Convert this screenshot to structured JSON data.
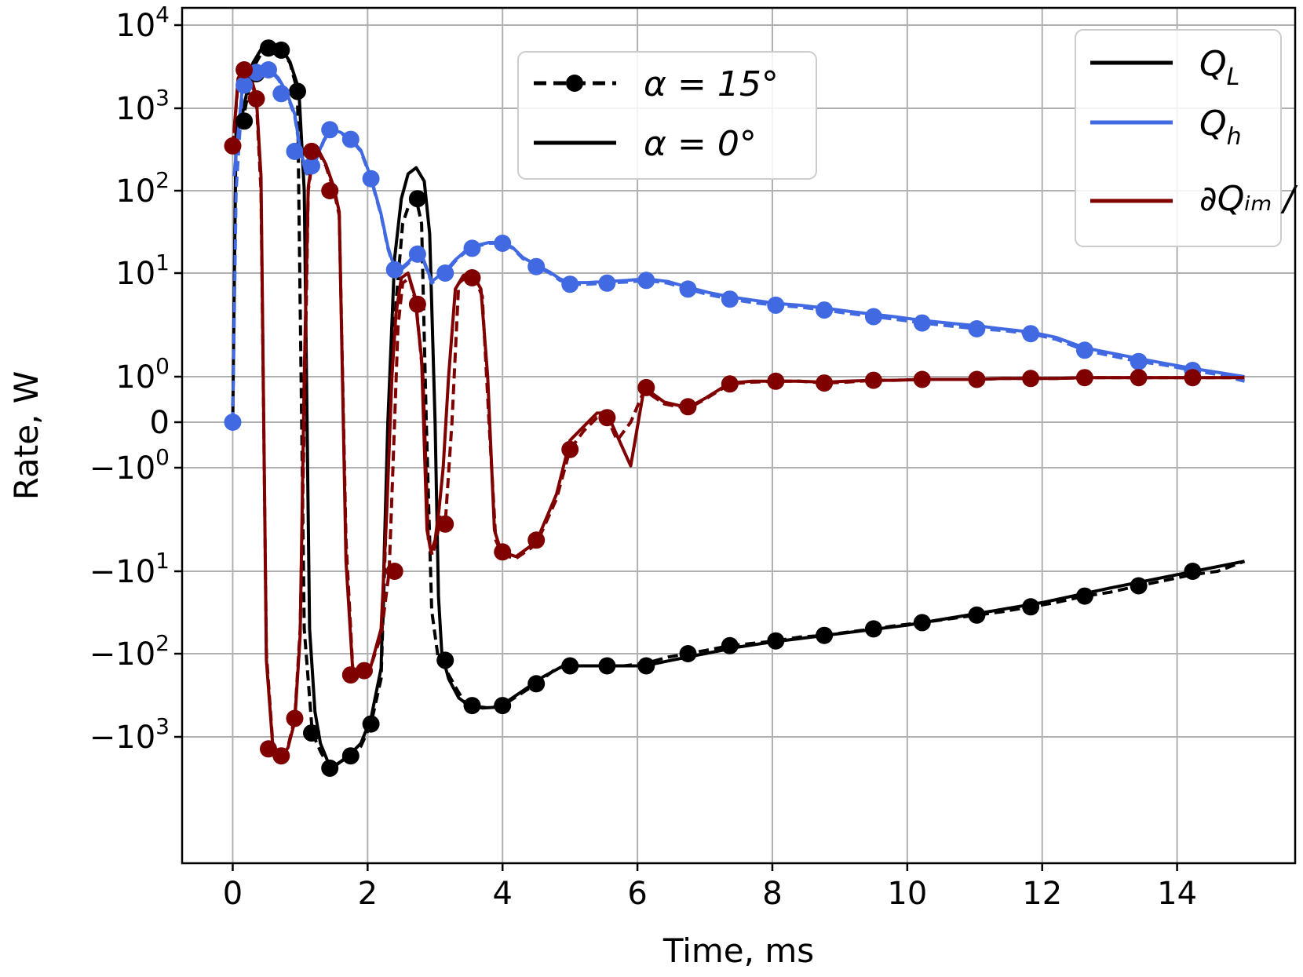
{
  "chart_data": {
    "type": "line",
    "xlabel": "Time, ms",
    "ylabel": "Rate, W",
    "xlim": [
      -0.75,
      15.75
    ],
    "yscale": "symlog",
    "xticks": [
      0,
      2,
      4,
      6,
      8,
      10,
      12,
      14
    ],
    "xtick_labels": [
      "0",
      "2",
      "4",
      "6",
      "8",
      "10",
      "12",
      "14"
    ],
    "ytick_labels": [
      {
        "value": 10000,
        "base": "10",
        "exp": "4"
      },
      {
        "value": 1000,
        "base": "10",
        "exp": "3"
      },
      {
        "value": 100,
        "base": "10",
        "exp": "2"
      },
      {
        "value": 10,
        "base": "10",
        "exp": "1"
      },
      {
        "value": 1,
        "base": "10",
        "exp": "0"
      },
      {
        "value": 0,
        "base": "0",
        "exp": ""
      },
      {
        "value": -1,
        "base": "−10",
        "exp": "0"
      },
      {
        "value": -10,
        "base": "−10",
        "exp": "1"
      },
      {
        "value": -100,
        "base": "−10",
        "exp": "2"
      },
      {
        "value": -1000,
        "base": "−10",
        "exp": "3"
      }
    ],
    "grid": true,
    "style_legend": {
      "position": "top-center",
      "entries": [
        {
          "label": "α = 15°",
          "style": "dashed-with-markers"
        },
        {
          "label": "α = 0°",
          "style": "solid"
        }
      ]
    },
    "series_legend": {
      "position": "top-right",
      "entries": [
        {
          "label": "Q",
          "sub": "L",
          "color": "#000000"
        },
        {
          "label": "Q",
          "sub": "h",
          "color": "#4169e1"
        },
        {
          "label": "∂Qᵢₘ / ∂t",
          "color": "#800000"
        }
      ]
    },
    "series": [
      {
        "name": "Q_L",
        "variant": "α = 15°",
        "color": "#000000",
        "dash": true,
        "markers": true,
        "x": [
          0,
          0.05,
          0.15,
          0.3,
          0.45,
          0.55,
          0.72,
          0.85,
          0.96,
          1.06,
          1.18,
          1.3,
          1.45,
          1.6,
          1.75,
          1.9,
          2.05,
          2.2,
          2.32,
          2.42,
          2.52,
          2.62,
          2.72,
          2.8,
          2.87,
          2.95,
          3.05,
          3.15,
          3.3,
          3.45,
          3.6,
          3.8,
          4.0,
          4.2,
          4.5,
          4.8,
          5.0,
          5.3,
          5.55,
          5.8,
          6.13,
          6.45,
          6.75,
          7.05,
          7.37,
          7.7,
          8.05,
          8.4,
          8.77,
          9.1,
          9.5,
          9.8,
          10.22,
          10.6,
          11.03,
          11.4,
          11.83,
          12.2,
          12.63,
          13.0,
          13.43,
          13.8,
          14.23,
          14.6,
          15.0
        ],
        "y": [
          0,
          500,
          700,
          3000,
          5000,
          5300,
          5000,
          3500,
          1600,
          -50,
          -900,
          -1500,
          -2500,
          -2000,
          -1700,
          -1300,
          -700,
          -200,
          0,
          5,
          40,
          70,
          80,
          40,
          0.5,
          -30,
          -120,
          -150,
          -250,
          -400,
          -430,
          -450,
          -420,
          -330,
          -230,
          -150,
          -140,
          -140,
          -140,
          -140,
          -130,
          -110,
          -100,
          -90,
          -80,
          -75,
          -70,
          -63,
          -60,
          -55,
          -50,
          -46,
          -42,
          -38,
          -34,
          -31,
          -27,
          -24,
          -20,
          -18,
          -15,
          -13,
          -11,
          -10,
          -8
        ]
      },
      {
        "name": "Q_L",
        "variant": "α = 0°",
        "color": "#000000",
        "dash": false,
        "markers": false,
        "x": [
          0,
          0.05,
          0.15,
          0.3,
          0.45,
          0.55,
          0.72,
          0.85,
          0.98,
          1.06,
          1.14,
          1.22,
          1.3,
          1.45,
          1.6,
          1.75,
          1.9,
          2.05,
          2.2,
          2.3,
          2.4,
          2.5,
          2.6,
          2.72,
          2.84,
          2.92,
          3.0,
          3.05,
          3.1,
          3.2,
          3.35,
          3.5,
          3.7,
          3.9,
          4.1,
          4.3,
          4.6,
          4.9,
          5.2,
          5.6,
          6.1,
          6.5,
          7.0,
          7.5,
          8.0,
          9.0,
          10.0,
          11.0,
          12.0,
          13.0,
          14.0,
          15.0
        ],
        "y": [
          0,
          600,
          900,
          3500,
          5600,
          5800,
          5300,
          3600,
          1700,
          100,
          -50,
          -500,
          -1200,
          -2400,
          -2000,
          -1600,
          -1200,
          -600,
          -150,
          0,
          15,
          80,
          160,
          190,
          130,
          30,
          0,
          -20,
          -100,
          -200,
          -340,
          -420,
          -450,
          -440,
          -360,
          -280,
          -190,
          -140,
          -140,
          -140,
          -140,
          -120,
          -100,
          -83,
          -72,
          -57,
          -45,
          -33,
          -24,
          -16,
          -11,
          -8
        ]
      },
      {
        "name": "Q_h",
        "variant": "α = 15°",
        "color": "#4169e1",
        "dash": true,
        "markers": true,
        "x": [
          0,
          0.05,
          0.15,
          0.3,
          0.42,
          0.55,
          0.68,
          0.8,
          0.92,
          1.0,
          1.1,
          1.2,
          1.35,
          1.45,
          1.6,
          1.75,
          1.9,
          2.05,
          2.2,
          2.3,
          2.4,
          2.5,
          2.6,
          2.72,
          2.83,
          2.95,
          3.05,
          3.15,
          3.3,
          3.45,
          3.6,
          3.8,
          4.0,
          4.15,
          4.3,
          4.5,
          4.7,
          4.85,
          5.0,
          5.25,
          5.55,
          5.85,
          6.13,
          6.45,
          6.75,
          7.05,
          7.37,
          7.7,
          8.05,
          8.4,
          8.77,
          9.1,
          9.5,
          9.8,
          10.22,
          10.6,
          11.03,
          11.4,
          11.83,
          12.2,
          12.63,
          13.0,
          13.43,
          13.8,
          14.23,
          14.6,
          15.0
        ],
        "y": [
          0,
          100,
          1900,
          2600,
          2900,
          2900,
          2200,
          1500,
          800,
          300,
          150,
          200,
          400,
          550,
          500,
          420,
          300,
          140,
          50,
          20,
          11,
          11,
          13,
          17,
          14,
          8,
          9,
          10,
          14,
          18,
          21,
          23,
          23,
          20,
          15,
          12,
          10,
          8.5,
          7.8,
          7.8,
          8,
          8.2,
          8.5,
          8,
          7,
          6.2,
          5.6,
          5.2,
          4.9,
          4.7,
          4.4,
          4.1,
          3.8,
          3.6,
          3.3,
          3.1,
          2.9,
          2.8,
          2.6,
          2.3,
          1.8,
          1.6,
          1.4,
          1.3,
          1.15,
          1.05,
          0.95
        ]
      },
      {
        "name": "Q_h",
        "variant": "α = 0°",
        "color": "#4169e1",
        "dash": false,
        "markers": false,
        "x": [
          0.02,
          0.15,
          0.3,
          0.42,
          0.55,
          0.68,
          0.8,
          0.92,
          1.0,
          1.1,
          1.2,
          1.35,
          1.45,
          1.6,
          1.75,
          1.9,
          2.05,
          2.2,
          2.3,
          2.4,
          2.5,
          2.6,
          2.72,
          2.83,
          2.95,
          3.05,
          3.15,
          3.3,
          3.45,
          3.6,
          3.8,
          4.0,
          4.15,
          4.3,
          4.5,
          4.7,
          4.85,
          5.0,
          5.25,
          5.55,
          5.85,
          6.13,
          6.45,
          6.75,
          7.05,
          7.37,
          7.7,
          8.05,
          8.4,
          8.77,
          9.1,
          9.5,
          9.8,
          10.22,
          10.6,
          11.03,
          11.4,
          11.83,
          12.2,
          12.63,
          13.0,
          13.43,
          13.8,
          14.23,
          14.6,
          15.0
        ],
        "y": [
          150,
          2000,
          2700,
          3000,
          3000,
          2300,
          1550,
          850,
          320,
          160,
          210,
          410,
          560,
          510,
          430,
          310,
          145,
          52,
          21,
          11.5,
          11.5,
          13.5,
          17.5,
          14.5,
          8.3,
          9.3,
          10.5,
          14.5,
          18.5,
          21.5,
          23.5,
          23.5,
          20.5,
          15.5,
          12.5,
          10.3,
          8.8,
          8.1,
          8.1,
          8.3,
          8.5,
          8.8,
          8.3,
          7.3,
          6.5,
          5.9,
          5.5,
          5.1,
          4.9,
          4.6,
          4.3,
          4.0,
          3.8,
          3.5,
          3.3,
          3.1,
          2.9,
          2.7,
          2.4,
          1.9,
          1.7,
          1.5,
          1.35,
          1.2,
          1.1,
          1.0
        ]
      },
      {
        "name": "dQm/dt",
        "variant": "α = 15°",
        "color": "#800000",
        "dash": true,
        "markers": true,
        "x": [
          0,
          0.08,
          0.17,
          0.25,
          0.35,
          0.42,
          0.5,
          0.6,
          0.72,
          0.82,
          0.92,
          1.0,
          1.06,
          1.12,
          1.2,
          1.28,
          1.38,
          1.5,
          1.58,
          1.68,
          1.78,
          1.9,
          2.05,
          2.2,
          2.32,
          2.4,
          2.45,
          2.52,
          2.62,
          2.72,
          2.82,
          2.9,
          2.96,
          3.02,
          3.08,
          3.15,
          3.25,
          3.35,
          3.45,
          3.58,
          3.7,
          3.8,
          3.9,
          4.0,
          4.2,
          4.5,
          4.8,
          5.0,
          5.2,
          5.4,
          5.55,
          5.7,
          5.9,
          6.1,
          6.4,
          6.75,
          7.0,
          7.37,
          7.7,
          8.05,
          8.4,
          8.77,
          9.1,
          9.5,
          9.8,
          10.22,
          10.6,
          11.03,
          11.4,
          11.83,
          12.2,
          12.63,
          13.0,
          13.43,
          13.8,
          14.23,
          14.6,
          15.0
        ],
        "y": [
          350,
          2000,
          2900,
          2500,
          1300,
          100,
          -100,
          -1400,
          -1700,
          -1300,
          -600,
          -50,
          0.5,
          100,
          300,
          280,
          200,
          100,
          50,
          -5,
          -150,
          -180,
          -140,
          -60,
          -10,
          0,
          3,
          8,
          9,
          5,
          1,
          -5,
          -7,
          -5,
          -3,
          -3.5,
          0,
          8,
          9,
          9,
          6,
          0,
          -5,
          -7,
          -7.5,
          -5.5,
          -2,
          -0.8,
          0.4,
          0.55,
          0.55,
          0.3,
          0,
          -0.15,
          -0.3,
          -0.35,
          -0.25,
          -0.08,
          -0.06,
          -0.05,
          -0.05,
          -0.07,
          -0.06,
          -0.04,
          -0.04,
          -0.03,
          -0.03,
          -0.03,
          -0.02,
          -0.02,
          -0.02,
          -0.01,
          -0.01,
          -0.01,
          -0.01,
          -0.01,
          -0.01,
          -0.01
        ]
      },
      {
        "name": "dQm/dt",
        "variant": "α = 0°",
        "color": "#800000",
        "dash": false,
        "markers": false,
        "x": [
          0.02,
          0.08,
          0.17,
          0.25,
          0.35,
          0.42,
          0.5,
          0.6,
          0.72,
          0.82,
          0.92,
          1.0,
          1.06,
          1.12,
          1.2,
          1.28,
          1.38,
          1.5,
          1.58,
          1.68,
          1.78,
          1.9,
          2.05,
          2.2,
          2.28,
          2.36,
          2.42,
          2.5,
          2.6,
          2.7,
          2.8,
          2.88,
          2.94,
          3.0,
          3.06,
          3.12,
          3.2,
          3.3,
          3.42,
          3.55,
          3.68,
          3.78,
          3.88,
          3.98,
          4.2,
          4.5,
          4.8,
          5.0,
          5.2,
          5.4,
          5.55,
          5.7,
          5.9,
          6.1,
          6.4,
          6.75,
          7.0,
          7.37,
          7.7,
          8.05,
          8.4,
          8.77,
          9.1,
          9.5,
          9.8,
          10.22,
          10.6,
          11.03,
          11.4,
          11.83,
          12.2,
          12.63,
          13.0,
          13.43,
          13.8,
          14.23,
          14.6,
          15.0
        ],
        "y": [
          500,
          2300,
          3100,
          2700,
          1400,
          150,
          -120,
          -1500,
          -1800,
          -1350,
          -650,
          -60,
          1,
          110,
          320,
          300,
          210,
          110,
          55,
          -8,
          -160,
          -190,
          -140,
          -50,
          -3,
          1,
          4,
          9,
          10,
          6,
          1.5,
          -4,
          -6.5,
          -5,
          -2.5,
          -1,
          1,
          7,
          9.5,
          10,
          7,
          1,
          -4,
          -6.5,
          -7.2,
          -5.2,
          -1.8,
          -0.7,
          0.45,
          0.6,
          0.6,
          0.35,
          0.02,
          -0.12,
          -0.28,
          -0.34,
          -0.24,
          -0.07,
          -0.05,
          -0.05,
          -0.05,
          -0.06,
          -0.05,
          -0.04,
          -0.04,
          -0.03,
          -0.03,
          -0.03,
          -0.02,
          -0.02,
          -0.02,
          -0.01,
          -0.01,
          -0.01,
          -0.01,
          -0.01,
          -0.01,
          -0.01
        ]
      }
    ],
    "markers": {
      "Q_L": {
        "color": "#000000",
        "x": [
          0.17,
          0.35,
          0.53,
          0.72,
          0.96,
          1.17,
          1.44,
          1.75,
          2.05,
          2.74,
          3.15,
          3.55,
          4.0,
          4.5,
          5.0,
          5.55,
          6.13,
          6.75,
          7.37,
          8.05,
          8.77,
          9.5,
          10.22,
          11.03,
          11.83,
          12.63,
          13.43,
          14.23
        ],
        "y": [
          700,
          2600,
          5300,
          5000,
          1600,
          -900,
          -2400,
          -1700,
          -700,
          80,
          -120,
          -420,
          -420,
          -230,
          -140,
          -140,
          -140,
          -100,
          -80,
          -70,
          -60,
          -50,
          -42,
          -34,
          -27,
          -20,
          -15,
          -10
        ]
      },
      "Q_h": {
        "color": "#4169e1",
        "x": [
          0.0,
          0.17,
          0.35,
          0.53,
          0.72,
          0.92,
          1.17,
          1.44,
          1.75,
          2.05,
          2.4,
          2.74,
          3.15,
          3.55,
          4.0,
          4.5,
          5.0,
          5.55,
          6.13,
          6.75,
          7.37,
          8.05,
          8.77,
          9.5,
          10.22,
          11.03,
          11.83,
          12.63,
          13.43,
          14.23
        ],
        "y": [
          0,
          1900,
          2700,
          2900,
          1500,
          300,
          200,
          550,
          420,
          140,
          11,
          17,
          10,
          20,
          23,
          12,
          7.8,
          8,
          8.5,
          7,
          5.6,
          4.9,
          4.4,
          3.8,
          3.3,
          2.9,
          2.6,
          1.8,
          1.4,
          1.15
        ]
      },
      "dQm/dt": {
        "color": "#800000",
        "x": [
          0.0,
          0.17,
          0.35,
          0.53,
          0.72,
          0.92,
          1.17,
          1.44,
          1.75,
          1.95,
          2.4,
          2.74,
          3.15,
          3.55,
          4.0,
          4.5,
          5.0,
          5.55,
          6.13,
          6.75,
          7.37,
          8.05,
          8.77,
          9.5,
          10.22,
          11.03,
          11.83,
          12.63,
          13.43,
          14.23
        ],
        "y": [
          350,
          2900,
          1300,
          -1400,
          -1700,
          -600,
          300,
          100,
          -180,
          -160,
          -10,
          5,
          -3.5,
          9,
          -6.5,
          -5,
          -0.8,
          0.55,
          -0.12,
          -0.33,
          -0.08,
          -0.05,
          -0.07,
          -0.04,
          -0.03,
          -0.03,
          -0.02,
          -0.01,
          -0.01,
          -0.01
        ]
      }
    }
  }
}
